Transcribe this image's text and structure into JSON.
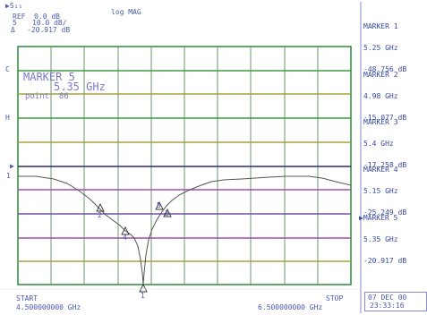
{
  "header": {
    "channel": "▶S₁₁",
    "format": "log MAG",
    "ref_line": "REF  0.0 dB",
    "scale_line": "10.0 dB/",
    "value_line": "-20.917 dB",
    "delta_symbol": "Δ",
    "marker_label": "5"
  },
  "active_marker": {
    "title": "MARKER 5",
    "freq": "5.35 GHz",
    "point": "point  86"
  },
  "left_labels": {
    "c": "C",
    "h": "H",
    "ref_arrow": "▶",
    "ref_num": "1"
  },
  "footer": {
    "start_label": "START",
    "start_value": "4.500000000 GHz",
    "stop_label": "STOP",
    "stop_value": "6.500000000 GHz",
    "date": "07 DEC 00",
    "time": "23:33:16"
  },
  "markers": [
    {
      "name": "MARKER 1",
      "freq": "5.25 GHz",
      "value": "-48.756 dB"
    },
    {
      "name": "MARKER 2",
      "freq": "4.98 GHz",
      "value": "-15.077 dB"
    },
    {
      "name": "MARKER 3",
      "freq": "5.4 GHz",
      "value": "-17.258 dB"
    },
    {
      "name": "MARKER 4",
      "freq": "5.15 GHz",
      "value": "-25.249 dB"
    },
    {
      "name": "▶MARKER 5",
      "freq": "5.35 GHz",
      "value": "-20.917 dB"
    }
  ],
  "plot_markers": [
    "1",
    "2",
    "3",
    "4",
    "5"
  ],
  "colors": {
    "grid_green": "#3e9a3e",
    "grid_olive": "#a8a040",
    "grid_magenta": "#a050a8",
    "grid_purple": "#7050a0",
    "frame": "#2a8a3a",
    "trace": "#555555"
  }
}
